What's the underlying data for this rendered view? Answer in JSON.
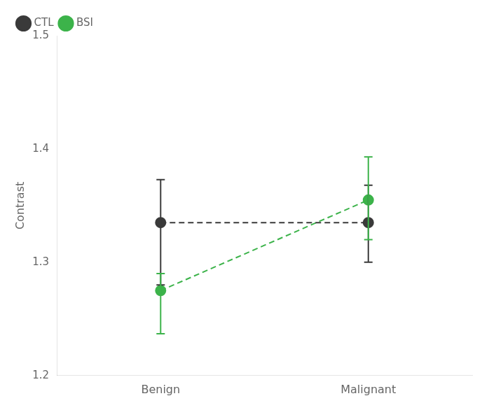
{
  "chart_data": {
    "type": "line",
    "categories": [
      "Benign",
      "Malignant"
    ],
    "series": [
      {
        "name": "CTL",
        "color": "#3a3a3a",
        "values": [
          1.335,
          1.335
        ],
        "error_lower": [
          0.055,
          0.035
        ],
        "error_upper": [
          0.038,
          0.033
        ]
      },
      {
        "name": "BSI",
        "color": "#3cb34a",
        "values": [
          1.275,
          1.355
        ],
        "error_lower": [
          0.038,
          0.035
        ],
        "error_upper": [
          0.015,
          0.038
        ]
      }
    ],
    "y_label": "Contrast",
    "ylim": [
      1.2,
      1.5
    ],
    "yticks": [
      1.2,
      1.3,
      1.4,
      1.5
    ],
    "marker": "circle",
    "line_style": "dashed",
    "legend": "upper left",
    "grid": false
  }
}
